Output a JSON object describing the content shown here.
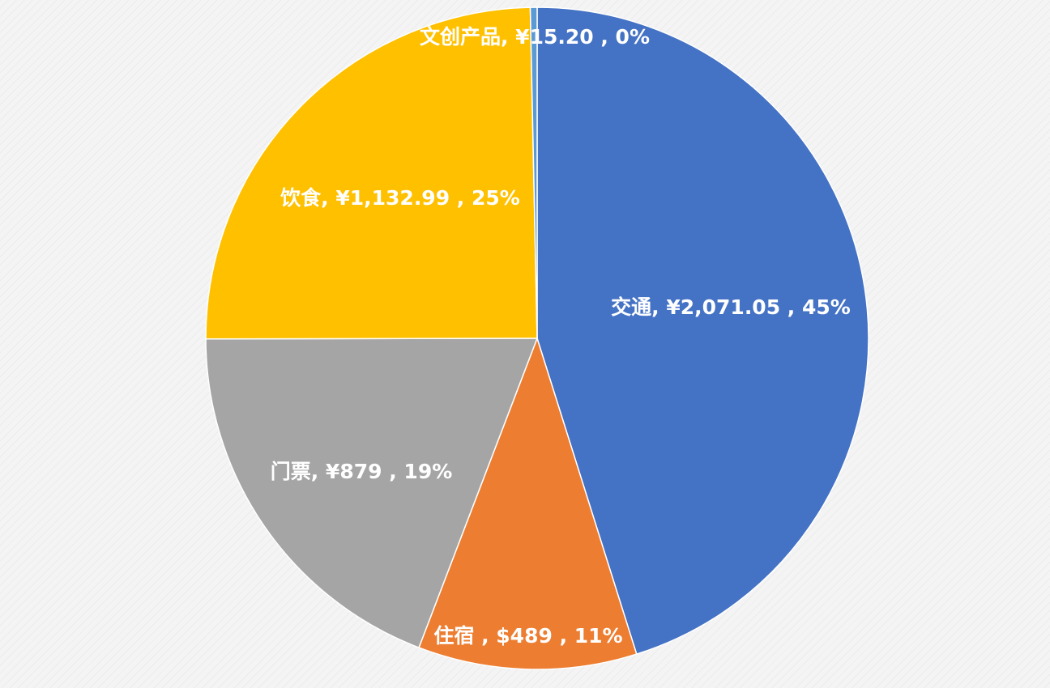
{
  "chart_data": {
    "type": "pie",
    "title": "",
    "start_angle_deg": 0,
    "direction": "clockwise",
    "slices": [
      {
        "category": "交通",
        "value": 2071.05,
        "label": "交通, ¥2,071.05 , 45%",
        "color": "#4472C4"
      },
      {
        "category": "住宿",
        "value": 489,
        "label": "住宿 , $489 , 11%",
        "color": "#ED7D31"
      },
      {
        "category": "门票",
        "value": 879,
        "label": "门票, ¥879 , 19%",
        "color": "#A5A5A5"
      },
      {
        "category": "饮食",
        "value": 1132.99,
        "label": "饮食, ¥1,132.99 , 25%",
        "color": "#FFC000"
      },
      {
        "category": "文创产品",
        "value": 15.2,
        "label": "文创产品, ¥15.20 , 0%",
        "color": "#5B9BD5"
      }
    ]
  }
}
